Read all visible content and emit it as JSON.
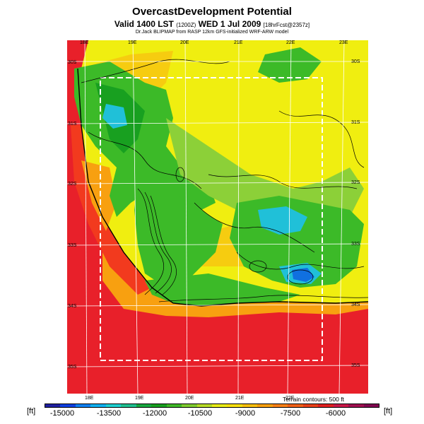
{
  "header": {
    "title": "OvercastDevelopment Potential",
    "valid_main": "Valid 1400 LST",
    "valid_code": "(1200Z)",
    "valid_date": "WED 1 Jul 2009",
    "forecast_info": "[18hrFcst@2357z]",
    "model_credit": "Dr.Jack BLIPMAP from RASP 12km GFS-initialized WRF-ARW model"
  },
  "map": {
    "lon_labels_top": [
      "18E",
      "19E",
      "20E",
      "21E",
      "22E",
      "23E"
    ],
    "lon_labels_bottom": [
      "18E",
      "19E",
      "20E",
      "21E",
      "22E"
    ],
    "lat_labels_left": [
      "30S",
      "31S",
      "32S",
      "33S",
      "34S",
      "35S"
    ],
    "lat_labels_right": [
      "30S",
      "31S",
      "32S",
      "33S",
      "34S",
      "35S"
    ],
    "terrain_note": "Terrain contours: 500 ft",
    "colors": {
      "ocean": "#e8202a",
      "coast": "#f23a1e",
      "green_dark": "#18a020",
      "green_mid": "#3cba28",
      "green_light": "#8cd038",
      "yellow": "#f0ee10",
      "yellow_orange": "#f6cc10",
      "orange": "#f8a010",
      "cyan": "#20c0d8",
      "blue": "#1070e0"
    }
  },
  "colorbar": {
    "unit": "[ft]",
    "colors": [
      "#2020a0",
      "#1040e0",
      "#1080f0",
      "#10b0f0",
      "#20d0d0",
      "#20c090",
      "#18a840",
      "#18a020",
      "#40b828",
      "#80cc30",
      "#b8dc28",
      "#e8ec18",
      "#f8e010",
      "#f8c010",
      "#f8a010",
      "#f88018",
      "#f06018",
      "#e84018",
      "#e02020",
      "#c81848",
      "#a01050",
      "#800850"
    ],
    "labels": [
      "-15000",
      "-13500",
      "-12000",
      "-10500",
      "-9000",
      "-7500",
      "-6000"
    ]
  }
}
